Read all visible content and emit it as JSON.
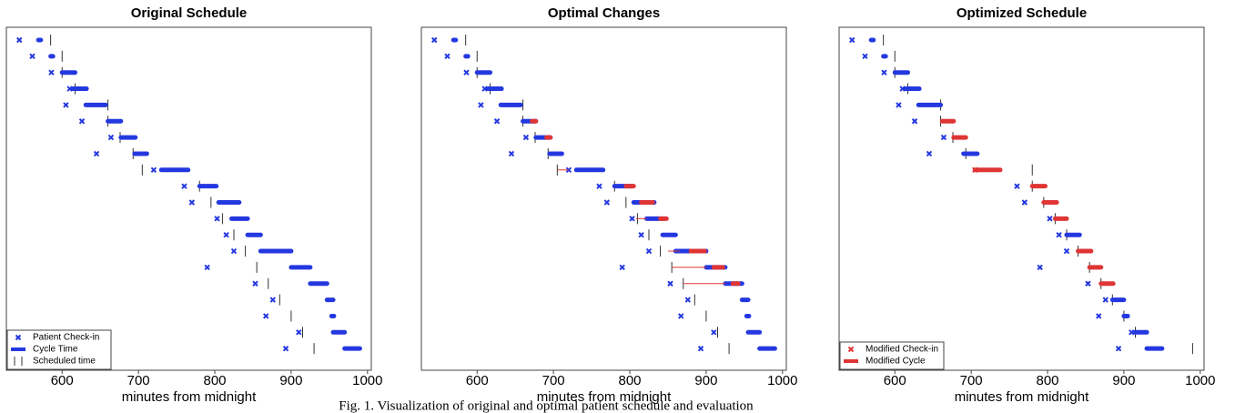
{
  "chart_data": [
    {
      "type": "schedule",
      "title": "Original Schedule",
      "xlabel": "minutes from midnight",
      "xlim": [
        527,
        1005
      ],
      "xticks": [
        600,
        700,
        800,
        900,
        1000
      ],
      "legend": "lower left",
      "series": [
        {
          "name": "Patient Check-in",
          "kind": "marker",
          "color": "#2438e0",
          "values": [
            544,
            561,
            586,
            610,
            605,
            626,
            664,
            645,
            720,
            760,
            770,
            803,
            815,
            825,
            790,
            853,
            876,
            867,
            910,
            893
          ]
        },
        {
          "name": "Cycle Time",
          "kind": "bar",
          "color": "#2438e0",
          "start": [
            569,
            585,
            600,
            614,
            631,
            660,
            677,
            695,
            730,
            780,
            805,
            822,
            843,
            860,
            900,
            925,
            947,
            953,
            955,
            970
          ],
          "end": [
            572,
            588,
            617,
            632,
            657,
            677,
            696,
            711,
            765,
            802,
            832,
            843,
            860,
            900,
            925,
            947,
            955,
            956,
            970,
            990
          ]
        },
        {
          "name": "Scheduled time",
          "kind": "tick",
          "color": "#333333",
          "values": [
            585,
            600,
            600,
            617,
            660,
            660,
            676,
            693,
            705,
            780,
            795,
            810,
            825,
            840,
            855,
            870,
            885,
            900,
            915,
            930
          ]
        }
      ]
    },
    {
      "type": "schedule",
      "title": "Optimal Changes",
      "xlabel": "minutes from midnight",
      "xlim": [
        527,
        1005
      ],
      "xticks": [
        600,
        700,
        800,
        900,
        1000
      ],
      "series": [
        {
          "kind": "marker",
          "color": "#2438e0",
          "values": [
            544,
            561,
            586,
            610,
            605,
            626,
            664,
            645,
            720,
            760,
            770,
            803,
            815,
            825,
            790,
            853,
            876,
            867,
            910,
            893
          ]
        },
        {
          "kind": "bar",
          "color": "#2438e0",
          "start": [
            569,
            585,
            600,
            614,
            631,
            660,
            677,
            695,
            730,
            780,
            805,
            822,
            843,
            860,
            900,
            925,
            947,
            953,
            955,
            970
          ],
          "end": [
            572,
            588,
            617,
            632,
            657,
            677,
            696,
            711,
            765,
            802,
            832,
            843,
            860,
            900,
            925,
            947,
            955,
            956,
            970,
            990
          ]
        },
        {
          "kind": "tick",
          "color": "#333333",
          "values": [
            585,
            600,
            600,
            617,
            660,
            660,
            676,
            693,
            705,
            780,
            795,
            810,
            825,
            840,
            855,
            870,
            885,
            900,
            915,
            930
          ]
        },
        {
          "kind": "line",
          "color": "#e03535",
          "start": [
            null,
            null,
            null,
            null,
            null,
            null,
            null,
            null,
            705,
            null,
            null,
            808,
            null,
            850,
            855,
            870,
            null,
            null,
            null,
            null
          ],
          "end": [
            null,
            null,
            null,
            null,
            null,
            null,
            null,
            null,
            720,
            null,
            null,
            822,
            null,
            865,
            900,
            925,
            null,
            null,
            null,
            null
          ]
        },
        {
          "kind": "bar",
          "color": "#e03535",
          "start": [
            null,
            null,
            null,
            null,
            null,
            672,
            691,
            null,
            null,
            795,
            815,
            840,
            null,
            880,
            910,
            935,
            null,
            null,
            null,
            null
          ],
          "end": [
            null,
            null,
            null,
            null,
            null,
            677,
            696,
            null,
            null,
            805,
            830,
            848,
            null,
            898,
            922,
            942,
            null,
            null,
            null,
            null
          ]
        }
      ]
    },
    {
      "type": "schedule",
      "title": "Optimized Schedule",
      "xlabel": "minutes from midnight",
      "xlim": [
        527,
        1005
      ],
      "xticks": [
        600,
        700,
        800,
        900,
        1000
      ],
      "legend": "lower left",
      "series": [
        {
          "kind": "marker",
          "color": "#2438e0",
          "values": [
            544,
            561,
            586,
            610,
            605,
            626,
            664,
            645,
            null,
            760,
            770,
            803,
            815,
            825,
            790,
            853,
            876,
            867,
            910,
            893
          ]
        },
        {
          "kind": "bar",
          "color": "#2438e0",
          "start": [
            569,
            585,
            600,
            614,
            631,
            null,
            null,
            690,
            null,
            null,
            null,
            null,
            825,
            null,
            null,
            null,
            885,
            900,
            915,
            930
          ],
          "end": [
            572,
            588,
            617,
            632,
            660,
            null,
            null,
            708,
            null,
            null,
            null,
            null,
            842,
            null,
            null,
            null,
            900,
            905,
            930,
            950
          ]
        },
        {
          "kind": "tick",
          "color": "#333333",
          "values": [
            585,
            600,
            600,
            617,
            660,
            660,
            676,
            693,
            780,
            780,
            795,
            810,
            825,
            840,
            855,
            870,
            885,
            900,
            915,
            990
          ]
        },
        {
          "name": "Modified Check-in",
          "kind": "marker",
          "color": "#e03535",
          "values": [
            null,
            null,
            null,
            null,
            null,
            null,
            null,
            null,
            705,
            null,
            null,
            null,
            null,
            null,
            null,
            null,
            null,
            null,
            null,
            null
          ]
        },
        {
          "name": "Modified Cycle",
          "kind": "bar",
          "color": "#e03535",
          "start": [
            null,
            null,
            null,
            null,
            null,
            662,
            677,
            null,
            705,
            780,
            795,
            810,
            null,
            840,
            855,
            870,
            null,
            null,
            null,
            null
          ],
          "end": [
            null,
            null,
            null,
            null,
            null,
            677,
            693,
            null,
            738,
            797,
            812,
            825,
            null,
            857,
            870,
            886,
            null,
            null,
            null,
            null
          ]
        }
      ]
    }
  ],
  "caption": "Fig. 1.  Visualization of original and optimal patient schedule and evaluation"
}
